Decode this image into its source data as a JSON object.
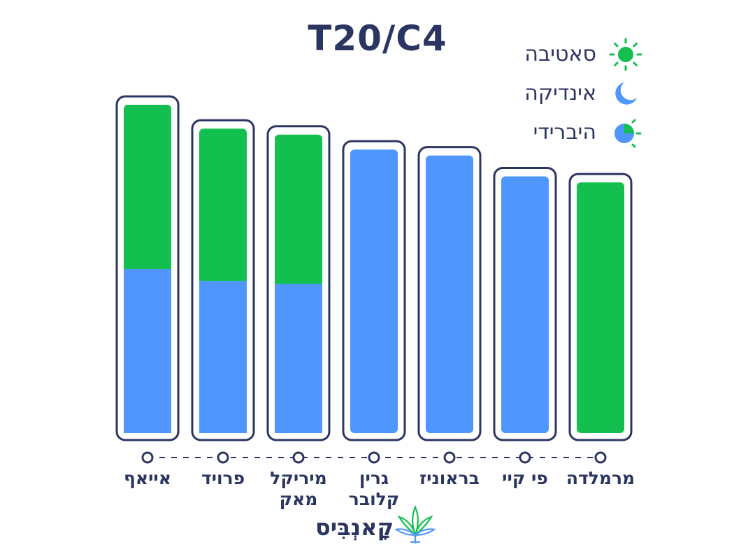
{
  "title": "T20/C4",
  "legend": [
    {
      "label": "סאטיבה",
      "icon": "sun-icon",
      "color": "#13c04f"
    },
    {
      "label": "אינדיקה",
      "icon": "moon-icon",
      "color": "#4f97ff"
    },
    {
      "label": "היברידי",
      "icon": "hybrid-icon",
      "color": "#4f97ff"
    }
  ],
  "colors": {
    "sativa": "#13c04f",
    "indica": "#4f97ff",
    "outline": "#2b3561"
  },
  "chart_data": {
    "type": "bar",
    "title": "T20/C4",
    "categories": [
      "אייאף",
      "פרויד",
      "מיריקל מאק",
      "גרין קלובר",
      "בראוניז",
      "פי קיי",
      "מרמלדה"
    ],
    "series": [
      {
        "name": "אינדיקה",
        "values": [
          11,
          10.2,
          10,
          19,
          18.6,
          17.2,
          0
        ]
      },
      {
        "name": "סאטיבה",
        "values": [
          11,
          10.2,
          10,
          0,
          0,
          0,
          16.8
        ]
      }
    ],
    "ylim": [
      0,
      22
    ],
    "stacked": true
  },
  "brand": {
    "name": "קָאנְבִּיס"
  }
}
